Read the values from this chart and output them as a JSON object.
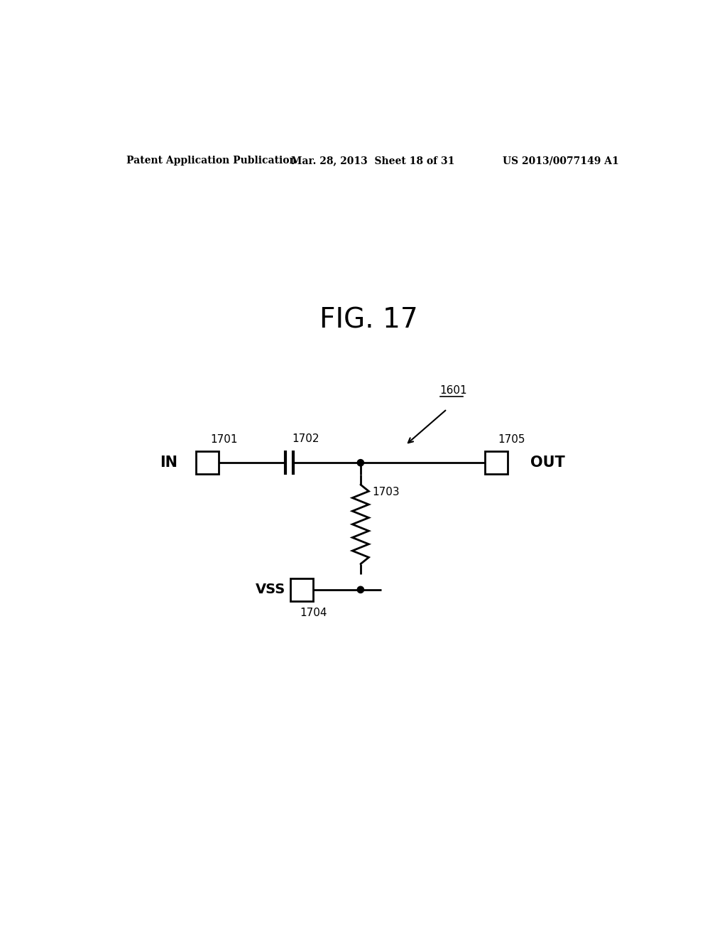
{
  "bg_color": "#ffffff",
  "header_left": "Patent Application Publication",
  "header_mid": "Mar. 28, 2013  Sheet 18 of 31",
  "header_right": "US 2013/0077149 A1",
  "fig_label": "FIG. 17",
  "label_1601": "1601",
  "label_1701": "1701",
  "label_1702": "1702",
  "label_1703": "1703",
  "label_1704": "1704",
  "label_1705": "1705",
  "label_IN": "IN",
  "label_OUT": "OUT",
  "label_VSS": "VSS",
  "line_color": "#000000",
  "line_width": 2.0
}
